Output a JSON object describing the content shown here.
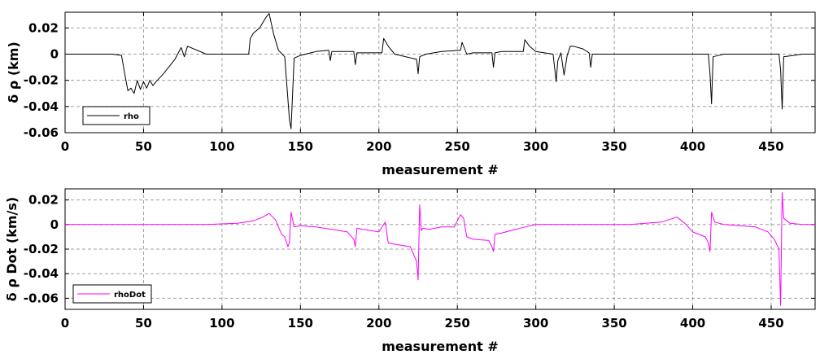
{
  "chart_data": [
    {
      "type": "line",
      "xlabel": "measurement #",
      "ylabel": "δ ρ (km)",
      "xlim": [
        0,
        478
      ],
      "ylim": [
        -0.06,
        0.032
      ],
      "xticks": [
        0,
        50,
        100,
        150,
        200,
        250,
        300,
        350,
        400,
        450
      ],
      "xtick_labels": [
        "0",
        "50",
        "100",
        "150",
        "200",
        "250",
        "300",
        "350",
        "400",
        "450"
      ],
      "yticks": [
        -0.06,
        -0.04,
        -0.02,
        0,
        0.02
      ],
      "ytick_labels": [
        "-0.06",
        "-0.04",
        "-0.02",
        "0",
        "0.02"
      ],
      "grid": true,
      "legend_position": "bottom-left",
      "series": [
        {
          "name": "rho",
          "color": "#000000",
          "x": [
            0,
            20,
            30,
            36,
            38,
            40,
            42,
            44,
            46,
            48,
            50,
            52,
            54,
            56,
            58,
            62,
            66,
            70,
            74,
            76,
            78,
            90,
            117,
            118,
            120,
            124,
            128,
            130,
            133,
            136,
            140,
            143,
            144,
            146,
            150,
            160,
            168,
            169,
            170,
            184,
            185,
            186,
            202,
            203,
            206,
            210,
            224,
            225,
            226,
            230,
            240,
            252,
            253,
            256,
            260,
            272,
            273,
            274,
            278,
            292,
            293,
            296,
            300,
            311,
            313,
            314,
            316,
            318,
            320,
            322,
            324,
            330,
            334,
            335,
            336,
            340,
            360,
            380,
            400,
            410,
            411,
            412,
            413,
            420,
            440,
            455,
            456,
            457,
            458,
            470,
            478
          ],
          "y": [
            0,
            0,
            0,
            -0.001,
            -0.015,
            -0.028,
            -0.026,
            -0.03,
            -0.02,
            -0.027,
            -0.021,
            -0.026,
            -0.02,
            -0.024,
            -0.021,
            -0.016,
            -0.01,
            -0.004,
            0.005,
            -0.002,
            0.006,
            0,
            0,
            0.012,
            0.016,
            0.02,
            0.028,
            0.031,
            0.015,
            0.003,
            -0.002,
            -0.05,
            -0.057,
            -0.003,
            -0.001,
            0.002,
            0.003,
            -0.005,
            0.002,
            0.002,
            -0.008,
            0.001,
            0.001,
            0.012,
            0.006,
            0,
            -0.004,
            -0.015,
            -0.002,
            0,
            0.002,
            0.003,
            0.009,
            0,
            0.001,
            0.001,
            -0.01,
            0.001,
            0.002,
            0.002,
            0.011,
            0.006,
            0.002,
            0,
            -0.021,
            -0.005,
            0.001,
            -0.016,
            -0.001,
            0.006,
            0.006,
            0.004,
            0.001,
            -0.01,
            0,
            0,
            0,
            0,
            0,
            0,
            -0.015,
            -0.038,
            -0.002,
            0,
            0,
            0,
            -0.012,
            -0.042,
            -0.002,
            0,
            0
          ]
        }
      ]
    },
    {
      "type": "line",
      "xlabel": "measurement #",
      "ylabel": "δ ρ Dot (km/s)",
      "xlim": [
        0,
        478
      ],
      "ylim": [
        -0.069,
        0.029
      ],
      "xticks": [
        0,
        50,
        100,
        150,
        200,
        250,
        300,
        350,
        400,
        450
      ],
      "xtick_labels": [
        "0",
        "50",
        "100",
        "150",
        "200",
        "250",
        "300",
        "350",
        "400",
        "450"
      ],
      "yticks": [
        -0.06,
        -0.04,
        -0.02,
        0,
        0.02
      ],
      "ytick_labels": [
        "-0.06",
        "-0.04",
        "-0.02",
        "0",
        "0.02"
      ],
      "grid": true,
      "legend_position": "bottom-left",
      "series": [
        {
          "name": "rhoDot",
          "color": "#ff00ff",
          "x": [
            0,
            30,
            60,
            90,
            110,
            120,
            126,
            130,
            134,
            138,
            140,
            142,
            143,
            144,
            146,
            150,
            160,
            170,
            180,
            184,
            185,
            186,
            190,
            200,
            204,
            206,
            210,
            220,
            224,
            225,
            226,
            227,
            228,
            232,
            240,
            248,
            252,
            254,
            256,
            260,
            270,
            272,
            273,
            274,
            278,
            290,
            300,
            320,
            340,
            360,
            380,
            390,
            395,
            400,
            408,
            410,
            411,
            412,
            414,
            420,
            440,
            448,
            452,
            455,
            456,
            457,
            458,
            462,
            470,
            478
          ],
          "y": [
            0,
            0,
            0,
            0,
            0.001,
            0.003,
            0.006,
            0.009,
            0.004,
            -0.008,
            -0.01,
            -0.018,
            -0.015,
            0.01,
            -0.002,
            -0.001,
            -0.002,
            -0.004,
            -0.006,
            -0.012,
            -0.018,
            -0.003,
            -0.004,
            -0.006,
            0.002,
            -0.015,
            -0.016,
            -0.018,
            -0.03,
            -0.045,
            0.016,
            -0.005,
            -0.003,
            -0.004,
            -0.002,
            -0.002,
            0.008,
            0.005,
            -0.01,
            -0.012,
            -0.013,
            -0.018,
            -0.022,
            -0.008,
            -0.007,
            -0.003,
            0,
            0,
            0,
            0,
            0.002,
            0.006,
            0.001,
            -0.006,
            -0.01,
            -0.015,
            -0.022,
            0.01,
            0.002,
            0,
            -0.002,
            -0.006,
            -0.012,
            -0.02,
            -0.066,
            0.026,
            0.005,
            0.001,
            0,
            0
          ]
        }
      ]
    }
  ]
}
